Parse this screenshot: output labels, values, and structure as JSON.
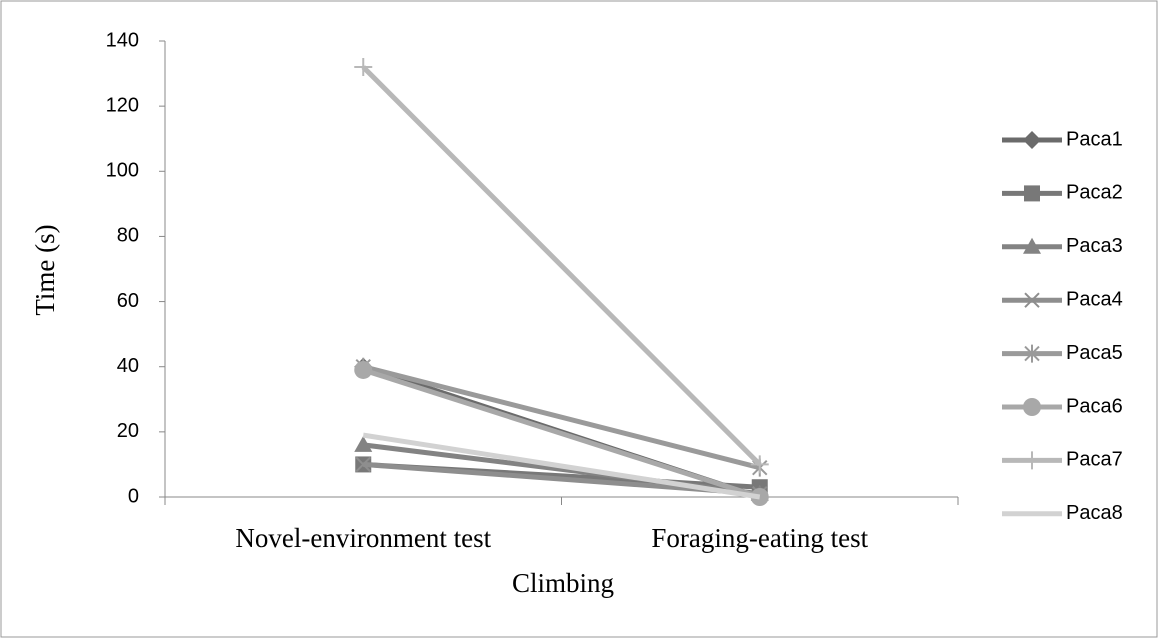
{
  "chart_data": {
    "type": "line",
    "x_label": "Climbing",
    "y_label": "Time (s)",
    "categories": [
      "Novel-environment test",
      "Foraging-eating test"
    ],
    "series": [
      {
        "name": "Paca1",
        "color": "#6b6b6b",
        "marker": "diamond",
        "values": [
          40,
          0
        ]
      },
      {
        "name": "Paca2",
        "color": "#787878",
        "marker": "square",
        "values": [
          10,
          3
        ]
      },
      {
        "name": "Paca3",
        "color": "#838383",
        "marker": "triangle",
        "values": [
          16,
          1
        ]
      },
      {
        "name": "Paca4",
        "color": "#8e8e8e",
        "marker": "x",
        "values": [
          10,
          1
        ]
      },
      {
        "name": "Paca5",
        "color": "#9a9a9a",
        "marker": "asterisk",
        "values": [
          40,
          9
        ]
      },
      {
        "name": "Paca6",
        "color": "#a8a8a8",
        "marker": "circle",
        "values": [
          39,
          0
        ]
      },
      {
        "name": "Paca7",
        "color": "#b8b8b8",
        "marker": "plus",
        "values": [
          132,
          10
        ]
      },
      {
        "name": "Paca8",
        "color": "#d2d2d2",
        "marker": "none",
        "values": [
          19,
          0
        ]
      }
    ],
    "ylim": [
      0,
      140
    ],
    "yticks": [
      0,
      20,
      40,
      60,
      80,
      100,
      120,
      140
    ],
    "legend": "right"
  }
}
